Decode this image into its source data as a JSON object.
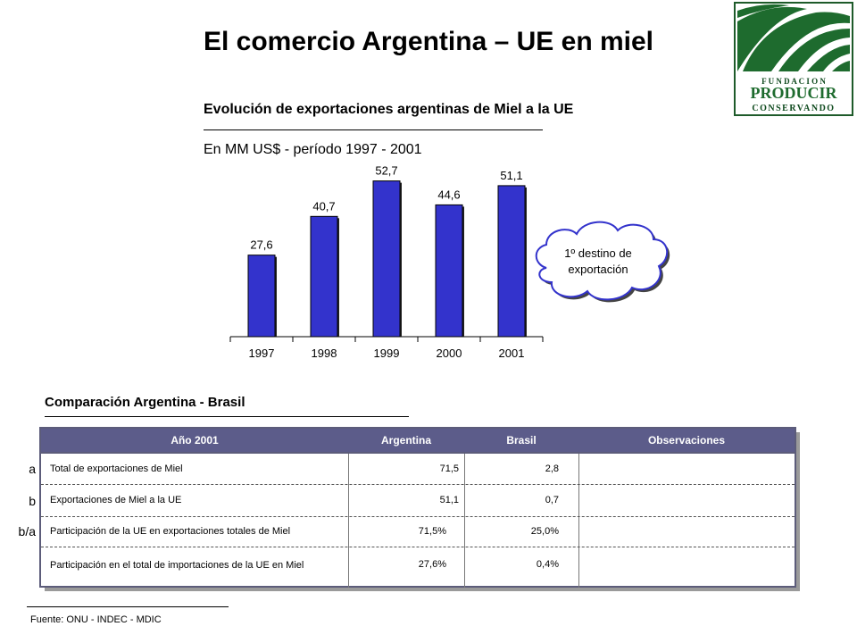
{
  "title": "El comercio Argentina – UE en miel",
  "logo": {
    "line1": "F U N D A C I O N",
    "line2": "PRODUCIR",
    "line3": "CONSERVANDO",
    "green": "#1e6b2e",
    "dark_green": "#0f4a1e"
  },
  "chart_data": {
    "type": "bar",
    "title": "Evolución de exportaciones argentinas de Miel a la UE",
    "subtitle": "En MM US$ - período 1997 - 2001",
    "categories": [
      "1997",
      "1998",
      "1999",
      "2000",
      "2001"
    ],
    "values": [
      27.6,
      40.7,
      52.7,
      44.6,
      51.1
    ],
    "data_labels": [
      "27,6",
      "40,7",
      "52,7",
      "44,6",
      "51,1"
    ],
    "ylim": [
      0,
      55
    ],
    "bar_color": "#3333cc",
    "annotation": "1º destino de exportación"
  },
  "comparison": {
    "title": "Comparación Argentina - Brasil",
    "header_color": "#5c5c8a",
    "columns": [
      "Año 2001",
      "Argentina",
      "Brasil",
      "Observaciones"
    ],
    "rows": [
      {
        "label": "a",
        "desc": "Total de exportaciones de Miel",
        "argentina": "71,5",
        "brasil": "2,8",
        "obs": ""
      },
      {
        "label": "b",
        "desc": "Exportaciones de Miel a la UE",
        "argentina": "51,1",
        "brasil": "0,7",
        "obs": ""
      },
      {
        "label": "b/a",
        "desc": "Participación de la UE en exportaciones totales de Miel",
        "argentina": "71,5%",
        "brasil": "25,0%",
        "obs": ""
      },
      {
        "label": "",
        "desc": "Participación en el total de importaciones de la UE en Miel",
        "argentina": "27,6%",
        "brasil": "0,4%",
        "obs": ""
      }
    ]
  },
  "source": "Fuente: ONU - INDEC - MDIC"
}
